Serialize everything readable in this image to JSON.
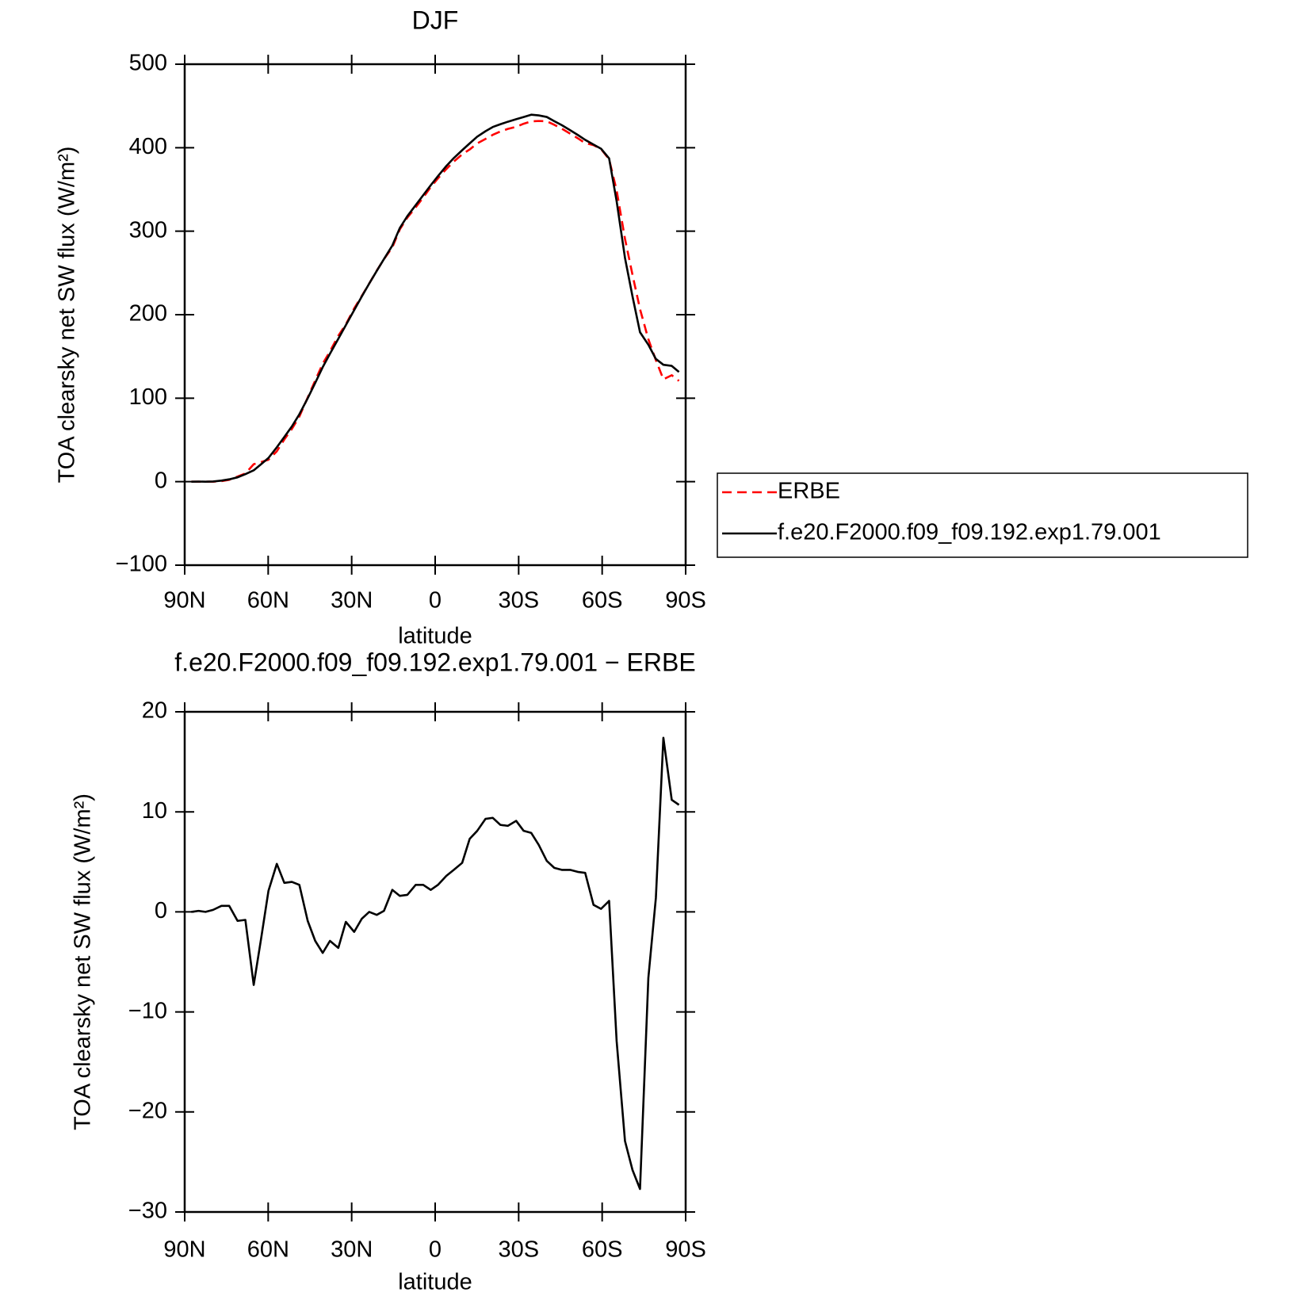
{
  "chart_data": [
    {
      "type": "line",
      "title": "DJF",
      "xlabel": "latitude",
      "ylabel": "TOA clearsky net SW flux (W/m²)",
      "x": [
        87.6,
        85,
        82.5,
        79.8,
        76.8,
        74,
        71,
        68.2,
        65.2,
        62.5,
        59.9,
        56.9,
        54.2,
        51.5,
        48.8,
        45.8,
        43.1,
        40.4,
        37.8,
        34.8,
        32.1,
        29.1,
        26.4,
        23.7,
        21.0,
        18.4,
        15.4,
        12.7,
        10,
        7.0,
        4.3,
        1.6,
        -1.0,
        -4,
        -6.7,
        -9.7,
        -12.4,
        -15.1,
        -18.1,
        -20.7,
        -23.4,
        -26.1,
        -29.1,
        -31.8,
        -34.5,
        -37.2,
        -40.1,
        -42.8,
        -45.5,
        -48.5,
        -51.2,
        -53.9,
        -56.9,
        -59.6,
        -62.5,
        -65.2,
        -68.2,
        -70.9,
        -73.6,
        -76.6,
        -79.3,
        -82,
        -85,
        -87.6
      ],
      "series": [
        {
          "name": "ERBE",
          "color": "#ff0000",
          "dashed": true,
          "values": [
            0,
            0,
            0,
            0,
            0.7,
            2.2,
            6.1,
            9.8,
            20.9,
            23.6,
            26.3,
            36.4,
            50.6,
            63.1,
            78,
            100.8,
            121.2,
            141.3,
            156.1,
            174.8,
            188.4,
            207.5,
            222.3,
            237.3,
            252.7,
            266.5,
            280.6,
            302.2,
            316.3,
            328.5,
            340.4,
            352.8,
            363.3,
            374.4,
            383.4,
            392.1,
            397.9,
            405.1,
            410.5,
            415.4,
            419.4,
            422.5,
            425,
            428.7,
            431.6,
            432,
            431.7,
            427.4,
            422.8,
            416.8,
            411.4,
            405.5,
            403.1,
            398.5,
            386.1,
            348.9,
            290.9,
            247.8,
            206.7,
            170.6,
            145.6,
            122.6,
            127.5,
            120.7
          ]
        },
        {
          "name": "f.e20.F2000.f09_f09.192.exp1.79.001",
          "color": "#000000",
          "dashed": false,
          "values": [
            0,
            0.1,
            0,
            0.2,
            1.3,
            2.8,
            5.2,
            9,
            13.6,
            21,
            28.4,
            41.2,
            53.5,
            66.1,
            80.7,
            99.9,
            118.3,
            137.2,
            153.2,
            171.2,
            187.4,
            205.5,
            221.6,
            237.3,
            252.4,
            266.6,
            282.8,
            303.8,
            318,
            331.2,
            343.1,
            355,
            366,
            378,
            387.6,
            397,
            405.2,
            413.2,
            419.8,
            424.8,
            428.1,
            431.1,
            434.1,
            436.8,
            439.5,
            438.7,
            436.8,
            431.8,
            427,
            421,
            415.4,
            409.4,
            403.8,
            398.8,
            387.2,
            336,
            268,
            222,
            179,
            164,
            147,
            140,
            138.7,
            131.4
          ]
        }
      ],
      "xlim": [
        90,
        -90
      ],
      "xticks": [
        {
          "value": 90,
          "label": "90N"
        },
        {
          "value": 60,
          "label": "60N"
        },
        {
          "value": 30,
          "label": "30N"
        },
        0,
        {
          "value": -30,
          "label": "30S"
        },
        {
          "value": -60,
          "label": "60S"
        },
        {
          "value": -90,
          "label": "90S"
        }
      ],
      "ylim": [
        -100,
        500
      ],
      "yticks": [
        {
          "value": -100,
          "label": "−100"
        },
        0,
        100,
        200,
        300,
        400,
        500
      ],
      "legend": "outside-right"
    },
    {
      "type": "line",
      "title": "f.e20.F2000.f09_f09.192.exp1.79.001 − ERBE",
      "xlabel": "latitude",
      "ylabel": "TOA clearsky net SW flux (W/m²)",
      "x": [
        87.6,
        85,
        82.5,
        79.8,
        76.8,
        74,
        71,
        68.2,
        65.2,
        62.5,
        59.9,
        56.9,
        54.2,
        51.5,
        48.8,
        45.8,
        43.1,
        40.4,
        37.8,
        34.8,
        32.1,
        29.1,
        26.4,
        23.7,
        21.0,
        18.4,
        15.4,
        12.7,
        10,
        7.0,
        4.3,
        1.6,
        -1.0,
        -4,
        -6.7,
        -9.7,
        -12.4,
        -15.1,
        -18.1,
        -20.7,
        -23.4,
        -26.1,
        -29.1,
        -31.8,
        -34.5,
        -37.2,
        -40.1,
        -42.8,
        -45.5,
        -48.5,
        -51.2,
        -53.9,
        -56.9,
        -59.6,
        -62.5,
        -65.2,
        -68.2,
        -70.9,
        -73.6,
        -76.6,
        -79.3,
        -82,
        -85,
        -87.6
      ],
      "series": [
        {
          "color": "#000000",
          "dashed": false,
          "values": [
            0,
            0.1,
            0,
            0.2,
            0.6,
            0.6,
            -0.9,
            -0.8,
            -7.3,
            -2.6,
            2.1,
            4.8,
            2.9,
            3.0,
            2.7,
            -0.9,
            -2.9,
            -4.1,
            -2.9,
            -3.6,
            -1.0,
            -2.0,
            -0.7,
            0,
            -0.3,
            0.1,
            2.2,
            1.6,
            1.7,
            2.7,
            2.7,
            2.2,
            2.7,
            3.6,
            4.2,
            4.9,
            7.3,
            8.1,
            9.3,
            9.4,
            8.7,
            8.6,
            9.1,
            8.1,
            7.9,
            6.7,
            5.1,
            4.4,
            4.2,
            4.2,
            4.0,
            3.9,
            0.7,
            0.3,
            1.1,
            -12.9,
            -22.9,
            -25.8,
            -27.7,
            -6.6,
            1.4,
            17.4,
            11.2,
            10.7
          ]
        }
      ],
      "xlim": [
        90,
        -90
      ],
      "xticks": [
        {
          "value": 90,
          "label": "90N"
        },
        {
          "value": 60,
          "label": "60N"
        },
        {
          "value": 30,
          "label": "30N"
        },
        0,
        {
          "value": -30,
          "label": "30S"
        },
        {
          "value": -60,
          "label": "60S"
        },
        {
          "value": -90,
          "label": "90S"
        }
      ],
      "ylim": [
        -30,
        20
      ],
      "yticks": [
        {
          "value": -30,
          "label": "−30"
        },
        {
          "value": -20,
          "label": "−20"
        },
        {
          "value": -10,
          "label": "−10"
        },
        0,
        10,
        20
      ]
    }
  ]
}
